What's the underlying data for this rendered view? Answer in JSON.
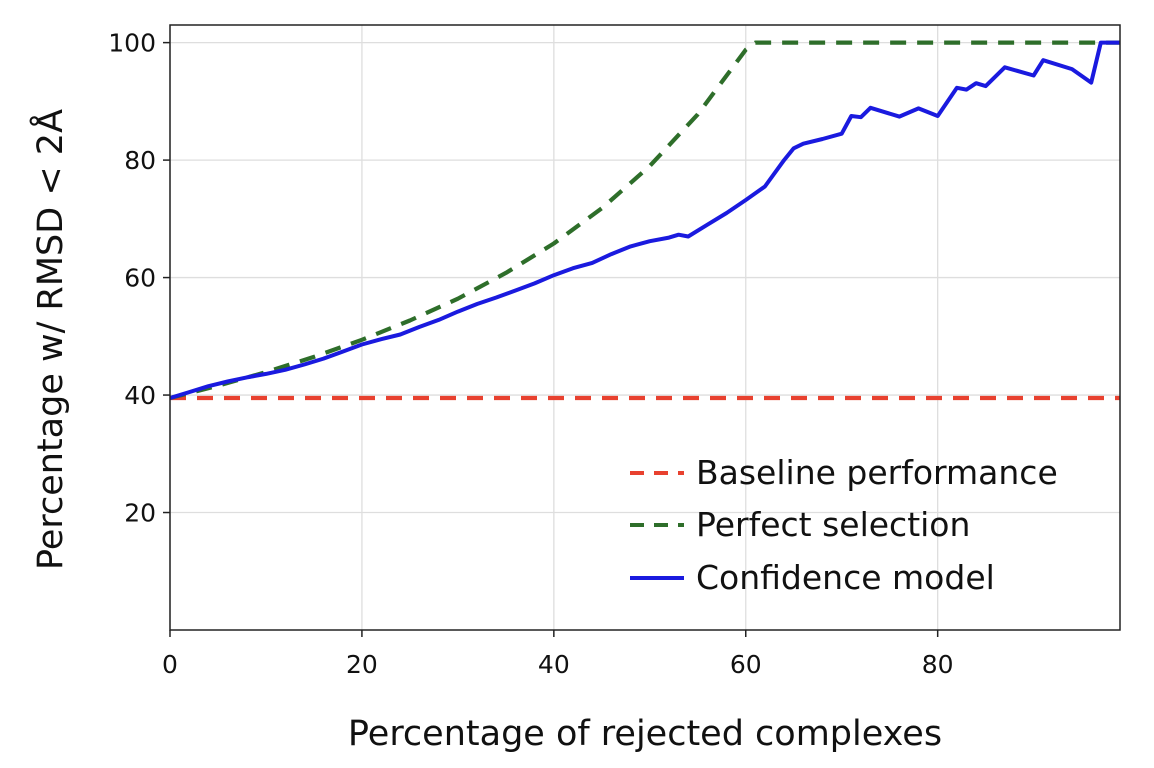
{
  "chart_data": {
    "type": "line",
    "title": "",
    "xlabel": "Percentage of rejected complexes",
    "ylabel": "Percentage w/ RMSD < 2Å",
    "xlim": [
      0,
      99
    ],
    "ylim": [
      0,
      103
    ],
    "xticks": [
      0,
      20,
      40,
      60,
      80
    ],
    "yticks": [
      20,
      40,
      60,
      80,
      100
    ],
    "grid": true,
    "legend_position": "lower-right",
    "series": [
      {
        "name": "Baseline performance",
        "style": "dashed",
        "color": "#e8412f",
        "x": [
          0,
          99
        ],
        "y": [
          39.5,
          39.5
        ]
      },
      {
        "name": "Perfect selection",
        "style": "dashed",
        "color": "#2e6e2a",
        "x": [
          0,
          5,
          10,
          15,
          20,
          25,
          30,
          35,
          40,
          45,
          50,
          55,
          60,
          61,
          70,
          80,
          90,
          99
        ],
        "y": [
          39.5,
          41.6,
          43.9,
          46.5,
          49.4,
          52.7,
          56.4,
          60.8,
          65.8,
          71.8,
          79.0,
          87.8,
          98.8,
          100,
          100,
          100,
          100,
          100
        ]
      },
      {
        "name": "Confidence model",
        "style": "solid",
        "color": "#1a1adf",
        "x": [
          0,
          2,
          4,
          6,
          8,
          10,
          12,
          14,
          16,
          18,
          20,
          22,
          24,
          26,
          28,
          30,
          32,
          34,
          36,
          38,
          40,
          42,
          44,
          46,
          48,
          50,
          52,
          53,
          54,
          56,
          58,
          60,
          62,
          64,
          65,
          66,
          68,
          70,
          71,
          72,
          73,
          76,
          78,
          80,
          82,
          83,
          84,
          85,
          87,
          90,
          91,
          94,
          96,
          97,
          99
        ],
        "y": [
          39.5,
          40.5,
          41.5,
          42.3,
          43.0,
          43.6,
          44.3,
          45.2,
          46.2,
          47.4,
          48.6,
          49.5,
          50.3,
          51.6,
          52.8,
          54.2,
          55.5,
          56.6,
          57.8,
          59.0,
          60.4,
          61.6,
          62.5,
          64.0,
          65.3,
          66.2,
          66.8,
          67.3,
          67.0,
          69.0,
          71.0,
          73.2,
          75.5,
          80.0,
          82.0,
          82.8,
          83.6,
          84.5,
          87.5,
          87.3,
          88.9,
          87.4,
          88.8,
          87.5,
          92.3,
          92.0,
          93.1,
          92.6,
          95.8,
          94.4,
          97.0,
          95.5,
          93.2,
          100,
          100
        ]
      }
    ]
  }
}
